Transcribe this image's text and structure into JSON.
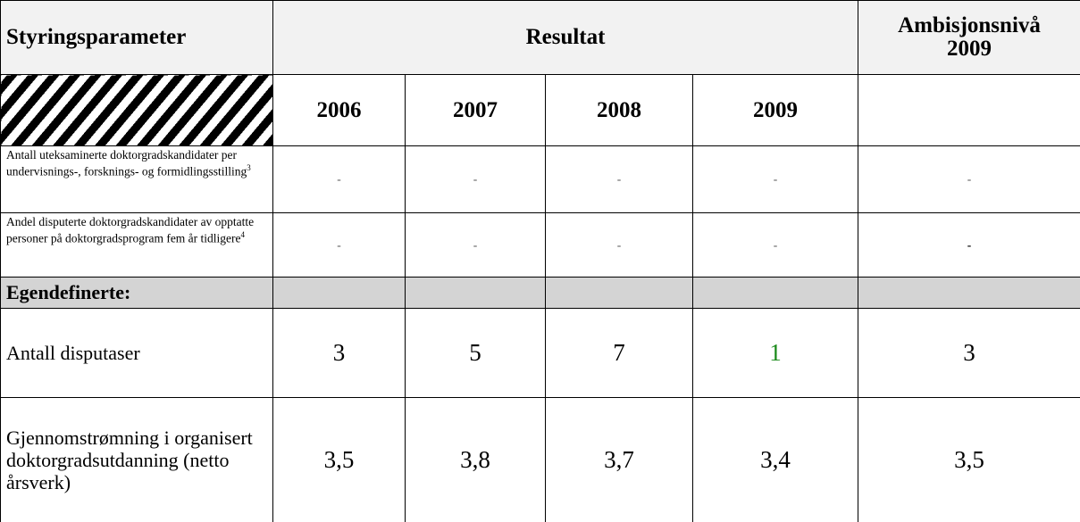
{
  "header": {
    "parameter": "Styringsparameter",
    "result": "Resultat",
    "ambition": [
      "Ambisjonsnivå",
      "2009"
    ]
  },
  "years": [
    "2006",
    "2007",
    "2008",
    "2009"
  ],
  "rows": [
    {
      "label": "Antall uteksaminerte doktorgradskandidater per undervisnings-, forsknings- og formidlingsstilling",
      "note": "3",
      "cells": [
        "-",
        "-",
        "-",
        "-",
        "-"
      ]
    },
    {
      "label": "Andel disputerte doktorgradskandidater av opptatte personer på doktorgradsprogram fem år tidligere",
      "note": "4",
      "cells": [
        "-",
        "-",
        "-",
        "-",
        "-"
      ]
    }
  ],
  "section": "Egendefinerte:",
  "custom_rows": [
    {
      "label": "Antall disputaser",
      "cells": [
        "3",
        "5",
        "7",
        "1",
        "3"
      ]
    },
    {
      "label": "Gjennomstrømning i organisert doktorgradsutdanning (netto årsverk)",
      "cells": [
        "3,5",
        "3,8",
        "3,7",
        "3,4",
        "3,5"
      ]
    }
  ]
}
